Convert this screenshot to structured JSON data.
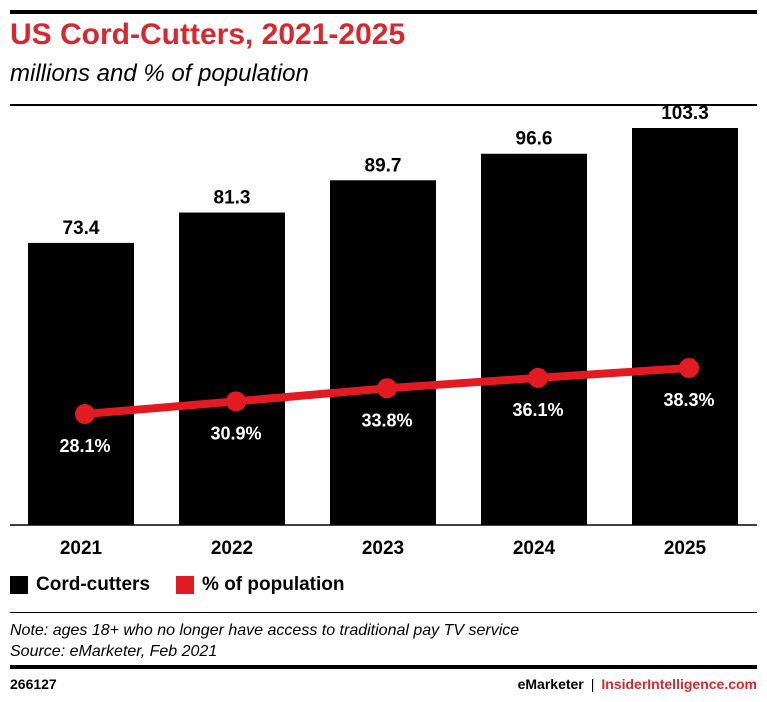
{
  "header": {
    "title": "US Cord-Cutters, 2021-2025",
    "subtitle": "millions and % of population"
  },
  "chart_data": {
    "type": "bar",
    "title": "US Cord-Cutters, 2021-2025",
    "subtitle": "millions and % of population",
    "categories": [
      "2021",
      "2022",
      "2023",
      "2024",
      "2025"
    ],
    "series": [
      {
        "name": "Cord-cutters",
        "kind": "bar",
        "color": "#000000",
        "values": [
          73.4,
          81.3,
          89.7,
          96.6,
          103.3
        ],
        "labels": [
          "73.4",
          "81.3",
          "89.7",
          "96.6",
          "103.3"
        ]
      },
      {
        "name": "% of population",
        "kind": "line",
        "color": "#e21b23",
        "values": [
          28.1,
          30.9,
          33.8,
          36.1,
          38.3
        ],
        "labels": [
          "28.1%",
          "30.9%",
          "33.8%",
          "36.1%",
          "38.3%"
        ]
      }
    ],
    "ylim_bars": [
      0,
      103.3
    ],
    "ylim_line": [
      0,
      100
    ],
    "grid": false,
    "legend": "bottom-left"
  },
  "legend": {
    "bars_label": "Cord-cutters",
    "line_label": "% of population"
  },
  "notes": {
    "note": "Note: ages 18+ who no longer have access to traditional pay TV service",
    "source": "Source: eMarketer, Feb 2021"
  },
  "footer": {
    "chart_id": "266127",
    "brand1": "eMarketer",
    "separator": "|",
    "brand2": "InsiderIntelligence.com"
  }
}
